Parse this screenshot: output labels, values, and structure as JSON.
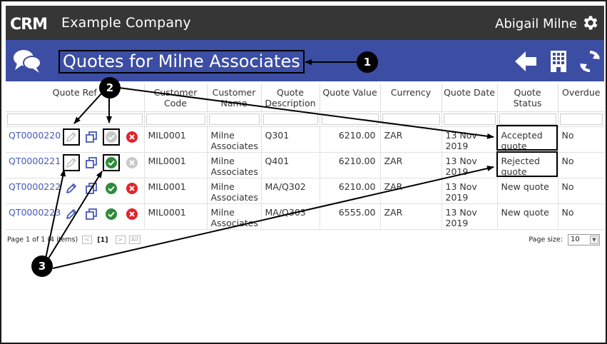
{
  "app": {
    "logo_text": "CRM",
    "company": "Example Company",
    "user": "Abigail Milne",
    "colors": {
      "topbar": "#363636",
      "titlebar": "#3c4ea3",
      "link": "#4659b8",
      "approve": "#2e8b3a",
      "reject": "#e0242d",
      "disabled": "#c8c8c8"
    }
  },
  "titlebar": {
    "title": "Quotes for Milne Associates",
    "icons": [
      "chat-bubbles-icon",
      "back-arrow-icon",
      "building-icon",
      "refresh-icon"
    ]
  },
  "table": {
    "columns": [
      "Quote Ref",
      "Customer Code",
      "Customer Name",
      "Quote Description",
      "Quote Value",
      "Currency",
      "Quote Date",
      "Quote Status",
      "Overdue"
    ],
    "rows": [
      {
        "ref": "QT0000220",
        "code": "MIL0001",
        "name": "Milne Associates",
        "desc": "Q301",
        "value": "6210.00",
        "currency": "ZAR",
        "date": "13 Nov 2019",
        "status": "Accepted quote",
        "overdue": "No",
        "edit_enabled": false,
        "approve_enabled": false,
        "reject_enabled": true
      },
      {
        "ref": "QT0000221",
        "code": "MIL0001",
        "name": "Milne Associates",
        "desc": "Q401",
        "value": "6210.00",
        "currency": "ZAR",
        "date": "13 Nov 2019",
        "status": "Rejected quote",
        "overdue": "No",
        "edit_enabled": false,
        "approve_enabled": true,
        "reject_enabled": false
      },
      {
        "ref": "QT0000222",
        "code": "MIL0001",
        "name": "Milne Associates",
        "desc": "MA/Q302",
        "value": "6210.00",
        "currency": "ZAR",
        "date": "13 Nov 2019",
        "status": "New quote",
        "overdue": "No",
        "edit_enabled": true,
        "approve_enabled": true,
        "reject_enabled": true
      },
      {
        "ref": "QT0000223",
        "code": "MIL0001",
        "name": "Milne Associates",
        "desc": "MA/Q303",
        "value": "6555.00",
        "currency": "ZAR",
        "date": "13 Nov 2019",
        "status": "New quote",
        "overdue": "No",
        "edit_enabled": true,
        "approve_enabled": true,
        "reject_enabled": true
      }
    ]
  },
  "pager": {
    "info": "Page 1 of 1 (4 items)",
    "prev": "<",
    "current": "[1]",
    "next": ">",
    "all": "All",
    "page_size_label": "Page size:",
    "page_size_value": "10"
  },
  "callouts": [
    "1",
    "2",
    "3"
  ]
}
